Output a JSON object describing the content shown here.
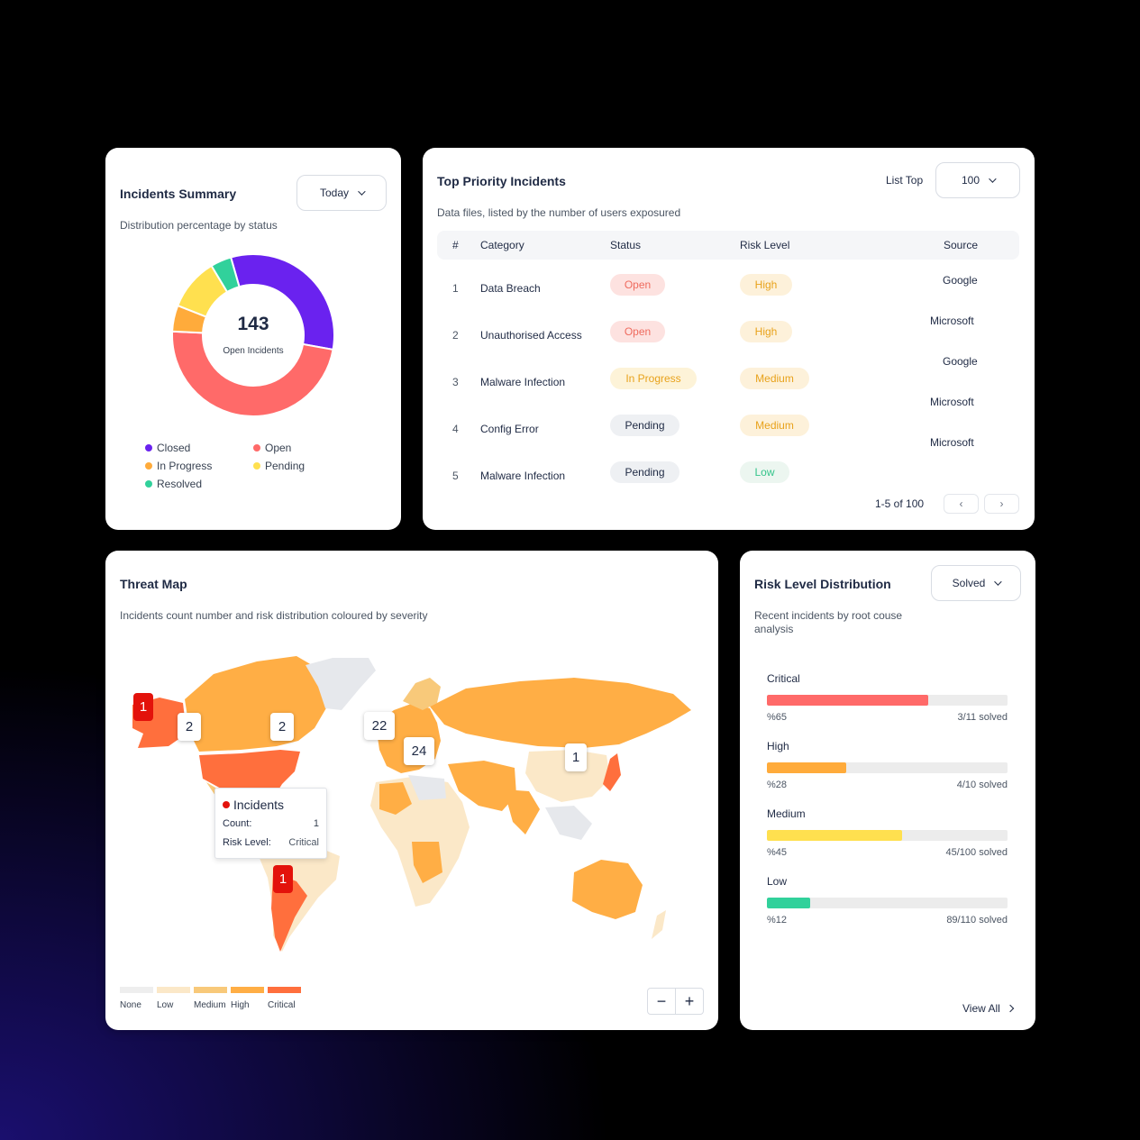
{
  "summary": {
    "title": "Incidents Summary",
    "filter": "Today",
    "subtitle": "Distribution percentage by status",
    "total": "143",
    "total_label": "Open Incidents",
    "legend": [
      {
        "label": "Closed",
        "color": "#6a22ef"
      },
      {
        "label": "Open",
        "color": "#ff6a69"
      },
      {
        "label": "In Progress",
        "color": "#ffab3b"
      },
      {
        "label": "Pending",
        "color": "#ffe04f"
      },
      {
        "label": "Resolved",
        "color": "#31d19b"
      }
    ]
  },
  "chart_data": {
    "type": "pie",
    "labels": [
      "Closed",
      "Open",
      "In Progress",
      "Pending",
      "Resolved"
    ],
    "values": [
      31,
      46,
      5,
      10,
      4
    ],
    "colors": [
      "#6a22ef",
      "#ff6a69",
      "#ffab3b",
      "#ffe04f",
      "#31d19b"
    ]
  },
  "priority": {
    "title": "Top Priority Incidents",
    "subtitle": "Data files, listed by the number of users exposured",
    "list_top_label": "List Top",
    "list_top_value": "100",
    "columns": [
      "#",
      "Category",
      "Status",
      "Risk Level",
      "Source"
    ],
    "rows": [
      {
        "num": "1",
        "category": "Data Breach",
        "status": "Open",
        "status_kind": "open",
        "risk": "High",
        "risk_kind": "high"
      },
      {
        "num": "2",
        "category": "Unauthorised Access",
        "status": "Open",
        "status_kind": "open",
        "risk": "High",
        "risk_kind": "high"
      },
      {
        "num": "3",
        "category": "Malware Infection",
        "status": "In Progress",
        "status_kind": "progress",
        "risk": "Medium",
        "risk_kind": "medium"
      },
      {
        "num": "4",
        "category": "Config Error",
        "status": "Pending",
        "status_kind": "pending",
        "risk": "Medium",
        "risk_kind": "medium"
      },
      {
        "num": "5",
        "category": "Malware Infection",
        "status": "Pending",
        "status_kind": "pending",
        "risk": "Low",
        "risk_kind": "low"
      }
    ],
    "sources": [
      "Google",
      "Microsoft",
      "Google",
      "Microsoft",
      "Microsoft"
    ],
    "pagination": "1-5 of 100",
    "prev_icon": "‹",
    "next_icon": "›"
  },
  "threat_map": {
    "title": "Threat Map",
    "subtitle": "Incidents count number and risk distribution coloured by severity",
    "markers": [
      {
        "value": "1",
        "kind": "red"
      },
      {
        "value": "2",
        "kind": "white"
      },
      {
        "value": "2",
        "kind": "white"
      },
      {
        "value": "22",
        "kind": "white"
      },
      {
        "value": "24",
        "kind": "white"
      },
      {
        "value": "1",
        "kind": "white"
      },
      {
        "value": "1",
        "kind": "red"
      }
    ],
    "tooltip": {
      "title": "Incidents",
      "count_label": "Count:",
      "count_value": "1",
      "risk_label": "Risk Level:",
      "risk_value": "Critical"
    },
    "scale": [
      {
        "label": "None",
        "color": "#eeeeee"
      },
      {
        "label": "Low",
        "color": "#fbe8c8"
      },
      {
        "label": "Medium",
        "color": "#f8c97a"
      },
      {
        "label": "High",
        "color": "#ffae45"
      },
      {
        "label": "Critical",
        "color": "#ff6f3d"
      }
    ],
    "zoom_out": "−",
    "zoom_in": "+"
  },
  "risk": {
    "title": "Risk Level Distribution",
    "filter": "Solved",
    "subtitle": "Recent incidents by root couse analysis",
    "levels": [
      {
        "label": "Critical",
        "pct": "%65",
        "solved": "3/11 solved",
        "fill": 0.67,
        "color": "#ff6a69"
      },
      {
        "label": "High",
        "pct": "%28",
        "solved": "4/10 solved",
        "fill": 0.33,
        "color": "#ffab3b"
      },
      {
        "label": "Medium",
        "pct": "%45",
        "solved": "45/100 solved",
        "fill": 0.56,
        "color": "#ffe04f"
      },
      {
        "label": "Low",
        "pct": "%12",
        "solved": "89/110 solved",
        "fill": 0.18,
        "color": "#31d19b"
      }
    ],
    "view_all": "View All"
  }
}
